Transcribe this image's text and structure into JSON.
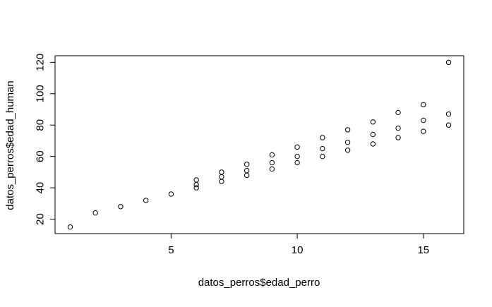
{
  "chart_data": {
    "type": "scatter",
    "title": "",
    "xlabel": "datos_perros$edad_perro",
    "ylabel": "datos_perros$edad_human",
    "xlim": [
      0.4,
      16.6
    ],
    "ylim": [
      10.8,
      124.2
    ],
    "xticks": [
      5,
      10,
      15
    ],
    "yticks": [
      20,
      40,
      60,
      80,
      100,
      120
    ],
    "grid": false,
    "marker": "open-circle",
    "point_color": "#000000",
    "series": [
      {
        "x": [
          1,
          2,
          3,
          4,
          5,
          6,
          6,
          6,
          7,
          7,
          7,
          8,
          8,
          8,
          9,
          9,
          9,
          10,
          10,
          10,
          11,
          11,
          11,
          12,
          12,
          12,
          13,
          13,
          13,
          14,
          14,
          14,
          15,
          15,
          15,
          16,
          16,
          16
        ],
        "y": [
          15,
          24,
          28,
          32,
          36,
          40,
          42,
          45,
          44,
          47,
          50,
          48,
          51,
          55,
          52,
          56,
          61,
          56,
          60,
          66,
          60,
          65,
          72,
          64,
          69,
          77,
          68,
          74,
          82,
          72,
          78,
          88,
          76,
          83,
          93,
          80,
          87,
          120
        ]
      }
    ]
  }
}
